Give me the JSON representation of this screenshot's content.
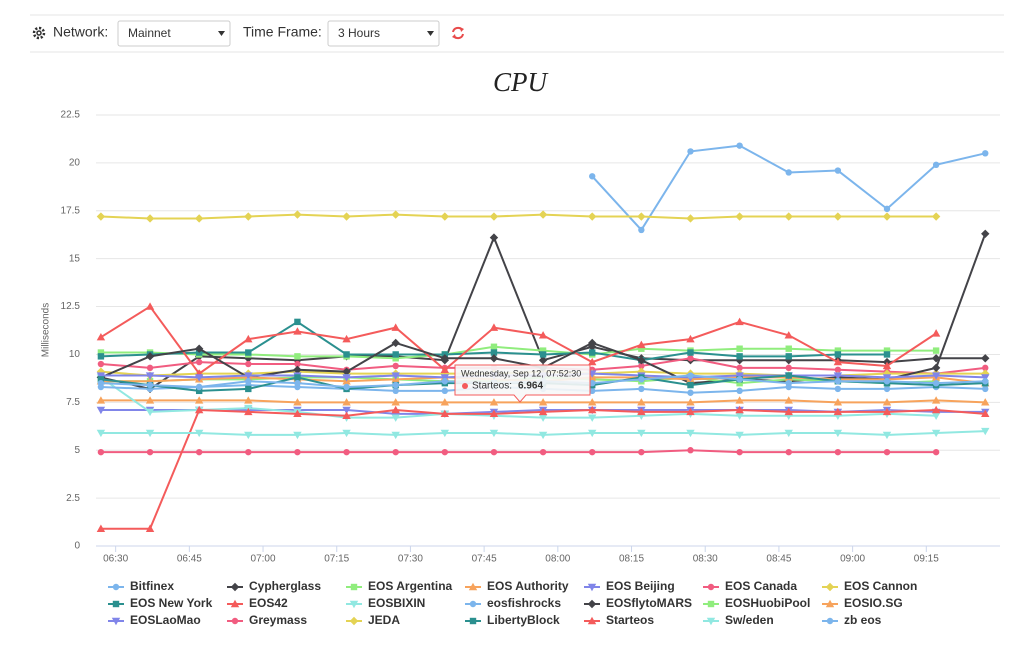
{
  "header": {
    "network_label": "Network:",
    "network_value": "Mainnet",
    "timeframe_label": "Time Frame:",
    "timeframe_value": "3 Hours"
  },
  "chart_data": {
    "type": "line",
    "title": "CPU",
    "y_label": "Milliseconds",
    "x": [
      "06:27",
      "06:37",
      "06:47",
      "06:57",
      "07:07",
      "07:17",
      "07:27",
      "07:37",
      "07:47",
      "07:57",
      "08:07",
      "08:17",
      "08:27",
      "08:37",
      "08:47",
      "08:57",
      "09:07",
      "09:17",
      "09:27"
    ],
    "xlim": [
      "06:26",
      "09:30"
    ],
    "xticks": [
      "06:30",
      "06:45",
      "07:00",
      "07:15",
      "07:30",
      "07:45",
      "08:00",
      "08:15",
      "08:30",
      "08:45",
      "09:00",
      "09:15"
    ],
    "ylim": [
      0,
      22.5
    ],
    "yticks": [
      0,
      2.5,
      5,
      7.5,
      10,
      12.5,
      15,
      17.5,
      20,
      22.5
    ],
    "grid": true,
    "series": [
      {
        "name": "Bitfinex",
        "color": "#7cb5ec",
        "marker": "circle",
        "values": [
          null,
          null,
          null,
          null,
          null,
          null,
          null,
          null,
          null,
          null,
          19.3,
          16.5,
          20.6,
          20.9,
          19.5,
          19.6,
          17.6,
          19.9,
          20.5
        ]
      },
      {
        "name": "Cypherglass",
        "color": "#434348",
        "marker": "diamond",
        "values": [
          8.8,
          8.2,
          9.9,
          9.8,
          9.7,
          9.9,
          9.9,
          9.7,
          16.1,
          9.7,
          10.4,
          9.8,
          9.7,
          9.7,
          9.7,
          9.7,
          9.6,
          9.8,
          9.8
        ]
      },
      {
        "name": "EOS Argentina",
        "color": "#90ed7d",
        "marker": "square",
        "values": [
          10.1,
          10.1,
          10.0,
          10.0,
          9.9,
          9.9,
          9.8,
          10.0,
          10.4,
          10.2,
          10.0,
          10.3,
          10.2,
          10.3,
          10.3,
          10.2,
          10.2,
          10.2,
          null
        ]
      },
      {
        "name": "EOS Authority",
        "color": "#f7a35c",
        "marker": "triangle",
        "values": [
          7.6,
          7.6,
          7.6,
          7.6,
          7.5,
          7.5,
          7.5,
          7.5,
          7.5,
          7.5,
          7.5,
          7.5,
          7.5,
          7.6,
          7.6,
          7.5,
          7.5,
          7.6,
          7.5
        ]
      },
      {
        "name": "EOS Beijing",
        "color": "#8085e9",
        "marker": "triangle-down",
        "values": [
          7.1,
          7.1,
          7.1,
          7.1,
          7.1,
          7.1,
          6.9,
          6.9,
          7.0,
          7.1,
          7.1,
          7.1,
          7.1,
          7.1,
          7.1,
          7.0,
          7.1,
          7.0,
          7.0
        ]
      },
      {
        "name": "EOS Canada",
        "color": "#f15c80",
        "marker": "circle",
        "values": [
          9.5,
          9.3,
          9.6,
          9.5,
          9.5,
          9.2,
          9.4,
          9.3,
          9.3,
          9.3,
          9.2,
          9.4,
          9.8,
          9.3,
          9.3,
          9.2,
          9.1,
          9.0,
          9.3
        ]
      },
      {
        "name": "EOS Cannon",
        "color": "#e4d354",
        "marker": "diamond",
        "values": [
          9.1,
          8.9,
          9.0,
          9.0,
          9.1,
          9.0,
          9.0,
          9.0,
          9.0,
          9.1,
          9.0,
          9.1,
          9.0,
          9.0,
          8.9,
          8.9,
          9.0,
          9.0,
          9.0
        ]
      },
      {
        "name": "EOS New York",
        "color": "#2b908f",
        "marker": "square",
        "values": [
          9.9,
          10.0,
          10.1,
          10.1,
          11.7,
          10.0,
          10.0,
          10.0,
          10.1,
          10.0,
          10.1,
          9.7,
          10.1,
          9.9,
          9.9,
          10.0,
          10.0,
          null,
          null
        ]
      },
      {
        "name": "EOS42",
        "color": "#f45b5b",
        "marker": "triangle",
        "values": [
          10.9,
          12.5,
          9.0,
          10.8,
          11.2,
          10.8,
          11.4,
          9.2,
          11.4,
          11.0,
          9.6,
          10.5,
          10.8,
          11.7,
          11.0,
          9.6,
          9.4,
          11.1,
          null
        ]
      },
      {
        "name": "EOSBIXIN",
        "color": "#91e8e1",
        "marker": "triangle-down",
        "values": [
          8.8,
          7.0,
          7.1,
          7.2,
          7.0,
          6.7,
          6.7,
          6.9,
          6.8,
          6.7,
          6.7,
          6.8,
          6.9,
          6.8,
          6.8,
          6.8,
          6.9,
          6.8,
          null
        ]
      },
      {
        "name": "eosfishrocks",
        "color": "#7cb5ec",
        "marker": "circle",
        "values": [
          8.3,
          8.2,
          8.3,
          8.4,
          8.3,
          8.2,
          8.1,
          8.1,
          8.3,
          8.2,
          8.1,
          8.2,
          8.0,
          8.1,
          8.3,
          8.2,
          8.2,
          8.3,
          8.2
        ]
      },
      {
        "name": "EOSflytoMARS",
        "color": "#434348",
        "marker": "diamond",
        "values": [
          8.8,
          9.9,
          10.3,
          8.8,
          9.2,
          9.1,
          10.6,
          9.8,
          9.8,
          9.3,
          10.6,
          9.7,
          8.5,
          8.7,
          8.6,
          8.8,
          8.7,
          9.3,
          16.3
        ]
      },
      {
        "name": "EOSHuobiPool",
        "color": "#90ed7d",
        "marker": "square",
        "values": [
          8.6,
          8.6,
          8.7,
          8.7,
          8.8,
          8.8,
          8.7,
          8.6,
          8.6,
          8.8,
          8.7,
          8.6,
          8.8,
          8.5,
          8.7,
          8.6,
          8.5,
          8.6,
          null
        ]
      },
      {
        "name": "EOSIO.SG",
        "color": "#f7a35c",
        "marker": "triangle",
        "values": [
          8.6,
          8.6,
          8.7,
          8.8,
          8.7,
          8.6,
          8.7,
          8.8,
          8.7,
          8.6,
          8.8,
          8.8,
          8.7,
          8.8,
          8.8,
          8.7,
          8.7,
          8.8,
          8.5
        ]
      },
      {
        "name": "EOSLaoMao",
        "color": "#8085e9",
        "marker": "triangle-down",
        "values": [
          8.9,
          8.9,
          8.8,
          8.9,
          8.9,
          8.8,
          8.9,
          8.8,
          8.9,
          8.9,
          9.0,
          8.9,
          8.8,
          8.9,
          8.9,
          8.9,
          8.8,
          8.9,
          8.8
        ]
      },
      {
        "name": "Greymass",
        "color": "#f15c80",
        "marker": "circle",
        "values": [
          4.9,
          4.9,
          4.9,
          4.9,
          4.9,
          4.9,
          4.9,
          4.9,
          4.9,
          4.9,
          4.9,
          4.9,
          5.0,
          4.9,
          4.9,
          4.9,
          4.9,
          4.9,
          null
        ]
      },
      {
        "name": "JEDA",
        "color": "#e4d354",
        "marker": "diamond",
        "values": [
          17.2,
          17.1,
          17.1,
          17.2,
          17.3,
          17.2,
          17.3,
          17.2,
          17.2,
          17.3,
          17.2,
          17.2,
          17.1,
          17.2,
          17.2,
          17.2,
          17.2,
          17.2,
          null
        ]
      },
      {
        "name": "LibertyBlock",
        "color": "#2b908f",
        "marker": "square",
        "values": [
          8.7,
          8.4,
          8.1,
          8.2,
          8.8,
          8.2,
          8.4,
          8.5,
          8.5,
          8.5,
          8.4,
          8.8,
          8.4,
          8.7,
          8.9,
          8.6,
          8.5,
          8.4,
          8.5
        ]
      },
      {
        "name": "Starteos",
        "color": "#f45b5b",
        "marker": "triangle",
        "values": [
          0.9,
          0.9,
          7.1,
          7.0,
          6.9,
          6.8,
          7.1,
          6.9,
          6.9,
          7.0,
          7.1,
          7.0,
          7.0,
          7.1,
          7.0,
          7.0,
          7.0,
          7.1,
          6.9
        ]
      },
      {
        "name": "Sw/eden",
        "color": "#91e8e1",
        "marker": "triangle-down",
        "values": [
          5.9,
          5.9,
          5.9,
          5.8,
          5.8,
          5.9,
          5.8,
          5.9,
          5.9,
          5.8,
          5.9,
          5.9,
          5.9,
          5.8,
          5.9,
          5.9,
          5.8,
          5.9,
          6.0
        ]
      },
      {
        "name": "zb eos",
        "color": "#7cb5ec",
        "marker": "circle",
        "values": [
          8.5,
          8.4,
          8.3,
          8.6,
          8.5,
          8.3,
          8.4,
          8.6,
          8.5,
          8.6,
          8.5,
          8.7,
          8.9,
          8.7,
          8.5,
          8.6,
          8.6,
          8.5,
          8.6
        ]
      }
    ],
    "tooltip": {
      "title": "Wednesday, Sep 12, 07:52:30",
      "label": "Starteos:",
      "value": 6.964
    }
  }
}
